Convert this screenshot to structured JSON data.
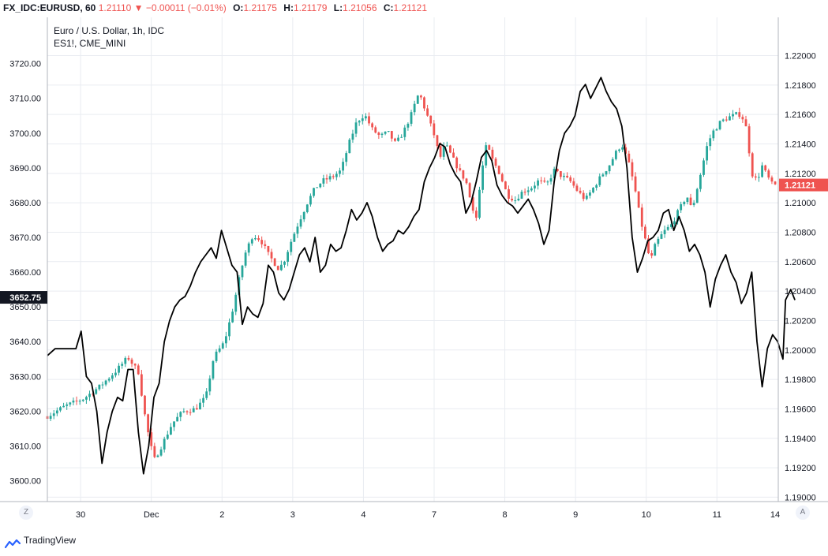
{
  "header": {
    "symbol": "FX_IDC:EURUSD, 60",
    "last": "1.21110",
    "arrow": "▼",
    "change": "−0.00011 (−0.01%)",
    "o_label": "O:",
    "o_value": "1.21175",
    "h_label": "H:",
    "h_value": "1.21179",
    "l_label": "L:",
    "l_value": "1.21056",
    "c_label": "C:",
    "c_value": "1.21121"
  },
  "legend": {
    "main": "Euro / U.S. Dollar, 1h, IDC",
    "compare": "ES1!, CME_MINI"
  },
  "footer": {
    "brand": "TradingView",
    "zoom_button": "Z",
    "auto_button": "A"
  },
  "colors": {
    "up": "#26a69a",
    "down": "#ef5350",
    "compare_line": "#000000",
    "grid": "#e9ecf1",
    "axis_text": "#131722"
  },
  "chart_data": {
    "type": "candlestick+line",
    "title": "Euro / U.S. Dollar, 1h, IDC",
    "x_ticks": [
      {
        "label": "30",
        "t": 0.64
      },
      {
        "label": "Dec",
        "t": 2.0
      },
      {
        "label": "2",
        "t": 3.36
      },
      {
        "label": "3",
        "t": 4.72
      },
      {
        "label": "4",
        "t": 6.08
      },
      {
        "label": "7",
        "t": 7.44
      },
      {
        "label": "8",
        "t": 8.8
      },
      {
        "label": "9",
        "t": 10.16
      },
      {
        "label": "10",
        "t": 11.52
      },
      {
        "label": "11",
        "t": 12.88
      },
      {
        "label": "14",
        "t": 14.24
      }
    ],
    "x_range": [
      0,
      14.06
    ],
    "right_axis": {
      "label": "EURUSD",
      "ticks": [
        "1.22000",
        "1.21800",
        "1.21600",
        "1.21400",
        "1.21200",
        "1.21000",
        "1.20800",
        "1.20600",
        "1.20400",
        "1.20200",
        "1.20000",
        "1.19800",
        "1.19600",
        "1.19400",
        "1.19200",
        "1.19000"
      ],
      "range": [
        1.1897,
        1.2226
      ],
      "last_value": "1.21121",
      "last_value_color": "#ef5350"
    },
    "left_axis": {
      "label": "ES1!",
      "ticks": [
        "3720.00",
        "3710.00",
        "3700.00",
        "3690.00",
        "3680.00",
        "3670.00",
        "3660.00",
        "3650.00",
        "3640.00",
        "3630.00",
        "3620.00",
        "3610.00",
        "3600.00"
      ],
      "range": [
        3594.0,
        3733.3
      ],
      "last_value": "3652.75",
      "last_value_color": "#131722"
    },
    "eurusd_path": [
      [
        0,
        1.1955
      ],
      [
        0.35,
        1.1962
      ],
      [
        0.7,
        1.1967
      ],
      [
        1.0,
        1.1975
      ],
      [
        1.3,
        1.1985
      ],
      [
        1.55,
        1.1995
      ],
      [
        1.75,
        1.1985
      ],
      [
        1.9,
        1.195
      ],
      [
        2.05,
        1.1925
      ],
      [
        2.2,
        1.1935
      ],
      [
        2.4,
        1.195
      ],
      [
        2.6,
        1.1958
      ],
      [
        2.85,
        1.196
      ],
      [
        3.05,
        1.1968
      ],
      [
        3.2,
        1.1995
      ],
      [
        3.4,
        1.2005
      ],
      [
        3.55,
        1.2025
      ],
      [
        3.7,
        1.205
      ],
      [
        3.8,
        1.2065
      ],
      [
        3.95,
        1.2078
      ],
      [
        4.1,
        1.2075
      ],
      [
        4.25,
        1.2065
      ],
      [
        4.35,
        1.206
      ],
      [
        4.45,
        1.2055
      ],
      [
        4.55,
        1.206
      ],
      [
        4.7,
        1.2075
      ],
      [
        4.85,
        1.2088
      ],
      [
        5.0,
        1.21
      ],
      [
        5.15,
        1.211
      ],
      [
        5.3,
        1.2115
      ],
      [
        5.5,
        1.2118
      ],
      [
        5.65,
        1.2122
      ],
      [
        5.8,
        1.214
      ],
      [
        5.95,
        1.2155
      ],
      [
        6.1,
        1.216
      ],
      [
        6.25,
        1.215
      ],
      [
        6.4,
        1.2145
      ],
      [
        6.55,
        1.2148
      ],
      [
        6.7,
        1.214
      ],
      [
        6.85,
        1.2148
      ],
      [
        7.0,
        1.216
      ],
      [
        7.15,
        1.2175
      ],
      [
        7.3,
        1.216
      ],
      [
        7.45,
        1.2145
      ],
      [
        7.55,
        1.213
      ],
      [
        7.65,
        1.214
      ],
      [
        7.8,
        1.213
      ],
      [
        7.95,
        1.212
      ],
      [
        8.05,
        1.2115
      ],
      [
        8.15,
        1.21
      ],
      [
        8.25,
        1.209
      ],
      [
        8.35,
        1.212
      ],
      [
        8.45,
        1.214
      ],
      [
        8.55,
        1.213
      ],
      [
        8.7,
        1.212
      ],
      [
        8.85,
        1.2105
      ],
      [
        9.0,
        1.2102
      ],
      [
        9.15,
        1.2108
      ],
      [
        9.3,
        1.211
      ],
      [
        9.45,
        1.2115
      ],
      [
        9.6,
        1.2112
      ],
      [
        9.75,
        1.2122
      ],
      [
        9.9,
        1.2118
      ],
      [
        10.05,
        1.2115
      ],
      [
        10.2,
        1.2108
      ],
      [
        10.35,
        1.2102
      ],
      [
        10.5,
        1.211
      ],
      [
        10.65,
        1.2118
      ],
      [
        10.8,
        1.2125
      ],
      [
        10.95,
        1.2135
      ],
      [
        11.05,
        1.214
      ],
      [
        11.2,
        1.2125
      ],
      [
        11.3,
        1.211
      ],
      [
        11.4,
        1.209
      ],
      [
        11.5,
        1.2075
      ],
      [
        11.6,
        1.206
      ],
      [
        11.7,
        1.2072
      ],
      [
        11.85,
        1.208
      ],
      [
        12.0,
        1.2085
      ],
      [
        12.15,
        1.2095
      ],
      [
        12.3,
        1.2105
      ],
      [
        12.4,
        1.2095
      ],
      [
        12.5,
        1.211
      ],
      [
        12.6,
        1.2125
      ],
      [
        12.7,
        1.214
      ],
      [
        12.8,
        1.2148
      ],
      [
        12.95,
        1.2155
      ],
      [
        13.1,
        1.2158
      ],
      [
        13.25,
        1.216
      ],
      [
        13.35,
        1.216
      ],
      [
        13.45,
        1.215
      ],
      [
        13.55,
        1.212
      ],
      [
        13.65,
        1.2115
      ],
      [
        13.75,
        1.2125
      ],
      [
        13.85,
        1.2118
      ],
      [
        13.95,
        1.2112
      ],
      [
        14.06,
        1.2112
      ]
    ],
    "es_line": [
      [
        0,
        3636
      ],
      [
        0.15,
        3638
      ],
      [
        0.3,
        3638
      ],
      [
        0.45,
        3638
      ],
      [
        0.55,
        3638
      ],
      [
        0.65,
        3643
      ],
      [
        0.75,
        3630
      ],
      [
        0.85,
        3628
      ],
      [
        0.95,
        3620
      ],
      [
        1.05,
        3605
      ],
      [
        1.15,
        3614
      ],
      [
        1.25,
        3620
      ],
      [
        1.35,
        3624
      ],
      [
        1.45,
        3623
      ],
      [
        1.55,
        3632
      ],
      [
        1.65,
        3632
      ],
      [
        1.75,
        3614
      ],
      [
        1.85,
        3602
      ],
      [
        1.95,
        3610
      ],
      [
        2.05,
        3624
      ],
      [
        2.15,
        3628
      ],
      [
        2.25,
        3640
      ],
      [
        2.35,
        3646
      ],
      [
        2.45,
        3650
      ],
      [
        2.55,
        3652
      ],
      [
        2.65,
        3653
      ],
      [
        2.75,
        3656
      ],
      [
        2.85,
        3660
      ],
      [
        2.95,
        3663
      ],
      [
        3.05,
        3665
      ],
      [
        3.15,
        3667
      ],
      [
        3.25,
        3664
      ],
      [
        3.35,
        3672
      ],
      [
        3.45,
        3667
      ],
      [
        3.55,
        3662
      ],
      [
        3.65,
        3660
      ],
      [
        3.75,
        3645
      ],
      [
        3.85,
        3650
      ],
      [
        3.95,
        3648
      ],
      [
        4.05,
        3647
      ],
      [
        4.15,
        3651
      ],
      [
        4.25,
        3662
      ],
      [
        4.35,
        3660
      ],
      [
        4.45,
        3654
      ],
      [
        4.55,
        3652
      ],
      [
        4.65,
        3655
      ],
      [
        4.75,
        3660
      ],
      [
        4.85,
        3665
      ],
      [
        4.95,
        3667
      ],
      [
        5.05,
        3663
      ],
      [
        5.15,
        3670
      ],
      [
        5.25,
        3660
      ],
      [
        5.35,
        3662
      ],
      [
        5.45,
        3668
      ],
      [
        5.55,
        3666
      ],
      [
        5.65,
        3667
      ],
      [
        5.75,
        3672
      ],
      [
        5.85,
        3678
      ],
      [
        5.95,
        3675
      ],
      [
        6.05,
        3677
      ],
      [
        6.15,
        3680
      ],
      [
        6.25,
        3676
      ],
      [
        6.35,
        3670
      ],
      [
        6.45,
        3666
      ],
      [
        6.55,
        3668
      ],
      [
        6.65,
        3669
      ],
      [
        6.75,
        3672
      ],
      [
        6.85,
        3671
      ],
      [
        6.95,
        3673
      ],
      [
        7.05,
        3676
      ],
      [
        7.15,
        3678
      ],
      [
        7.25,
        3686
      ],
      [
        7.35,
        3690
      ],
      [
        7.45,
        3693
      ],
      [
        7.55,
        3697
      ],
      [
        7.65,
        3696
      ],
      [
        7.75,
        3691
      ],
      [
        7.85,
        3688
      ],
      [
        7.95,
        3686
      ],
      [
        8.05,
        3677
      ],
      [
        8.15,
        3680
      ],
      [
        8.25,
        3686
      ],
      [
        8.35,
        3693
      ],
      [
        8.45,
        3695
      ],
      [
        8.55,
        3692
      ],
      [
        8.65,
        3685
      ],
      [
        8.75,
        3682
      ],
      [
        8.85,
        3680
      ],
      [
        8.95,
        3679
      ],
      [
        9.05,
        3677
      ],
      [
        9.15,
        3679
      ],
      [
        9.25,
        3681
      ],
      [
        9.35,
        3678
      ],
      [
        9.45,
        3674
      ],
      [
        9.55,
        3668
      ],
      [
        9.65,
        3672
      ],
      [
        9.75,
        3686
      ],
      [
        9.85,
        3695
      ],
      [
        9.95,
        3700
      ],
      [
        10.05,
        3702
      ],
      [
        10.15,
        3705
      ],
      [
        10.25,
        3712
      ],
      [
        10.35,
        3714
      ],
      [
        10.45,
        3710
      ],
      [
        10.55,
        3713
      ],
      [
        10.65,
        3716
      ],
      [
        10.75,
        3712
      ],
      [
        10.85,
        3709
      ],
      [
        10.95,
        3707
      ],
      [
        11.05,
        3702
      ],
      [
        11.15,
        3690
      ],
      [
        11.25,
        3670
      ],
      [
        11.35,
        3660
      ],
      [
        11.45,
        3664
      ],
      [
        11.55,
        3669
      ],
      [
        11.65,
        3670
      ],
      [
        11.75,
        3672
      ],
      [
        11.85,
        3677
      ],
      [
        11.95,
        3678
      ],
      [
        12.05,
        3672
      ],
      [
        12.15,
        3676
      ],
      [
        12.25,
        3672
      ],
      [
        12.35,
        3666
      ],
      [
        12.45,
        3668
      ],
      [
        12.55,
        3665
      ],
      [
        12.65,
        3660
      ],
      [
        12.75,
        3650
      ],
      [
        12.85,
        3658
      ],
      [
        12.95,
        3662
      ],
      [
        13.05,
        3665
      ],
      [
        13.15,
        3660
      ],
      [
        13.25,
        3657
      ],
      [
        13.35,
        3651
      ],
      [
        13.45,
        3654
      ],
      [
        13.55,
        3660
      ],
      [
        13.65,
        3640
      ],
      [
        13.75,
        3627
      ],
      [
        13.85,
        3638
      ],
      [
        13.95,
        3642
      ],
      [
        14.05,
        3640
      ],
      [
        14.15,
        3635
      ],
      [
        14.2,
        3652
      ],
      [
        14.3,
        3655
      ],
      [
        14.38,
        3652
      ]
    ]
  }
}
